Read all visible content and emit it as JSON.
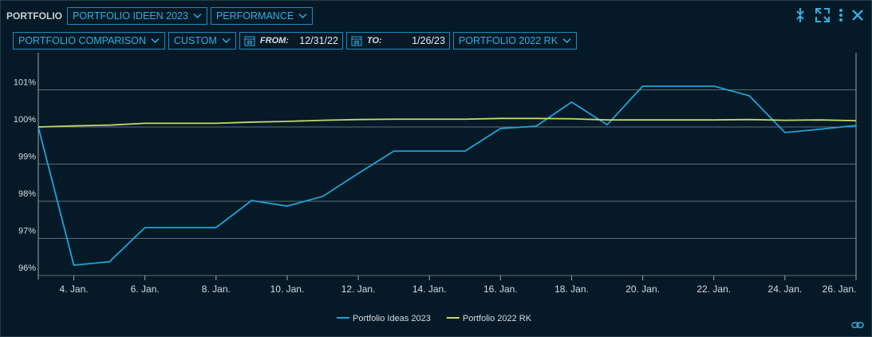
{
  "toolbar": {
    "label": "PORTFOLIO",
    "portfolio": "PORTFOLIO IDEEN 2023",
    "view": "PERFORMANCE",
    "mode": "PORTFOLIO COMPARISON",
    "range": "CUSTOM",
    "from_label": "FROM:",
    "from": "12/31/22",
    "to_label": "TO:",
    "to": "1/26/23",
    "benchmark": "PORTFOLIO 2022 RK"
  },
  "chart_data": {
    "type": "line",
    "x": [
      3,
      4,
      5,
      6,
      7,
      8,
      9,
      10,
      11,
      12,
      13,
      14,
      15,
      16,
      17,
      18,
      19,
      20,
      21,
      22,
      23,
      24,
      25,
      26
    ],
    "xlim": [
      3,
      26
    ],
    "xticks": [
      {
        "value": 4,
        "label": "4. Jan."
      },
      {
        "value": 6,
        "label": "6. Jan."
      },
      {
        "value": 8,
        "label": "8. Jan."
      },
      {
        "value": 10,
        "label": "10. Jan."
      },
      {
        "value": 12,
        "label": "12. Jan."
      },
      {
        "value": 14,
        "label": "14. Jan."
      },
      {
        "value": 16,
        "label": "16. Jan."
      },
      {
        "value": 18,
        "label": "18. Jan."
      },
      {
        "value": 20,
        "label": "20. Jan."
      },
      {
        "value": 22,
        "label": "22. Jan."
      },
      {
        "value": 24,
        "label": "24. Jan."
      },
      {
        "value": 26,
        "label": "26. Jan."
      }
    ],
    "ylim": [
      96,
      102
    ],
    "yticks": [
      {
        "value": 96,
        "label": "96%"
      },
      {
        "value": 97,
        "label": "97%"
      },
      {
        "value": 98,
        "label": "98%"
      },
      {
        "value": 99,
        "label": "99%"
      },
      {
        "value": 100,
        "label": "100%"
      },
      {
        "value": 101,
        "label": "101%"
      }
    ],
    "grid": true,
    "series": [
      {
        "name": "Portfolio Ideas 2023",
        "color": "#1fa3d8",
        "values": [
          100,
          96.28,
          96.37,
          97.29,
          97.29,
          97.29,
          98.02,
          97.87,
          98.13,
          98.75,
          99.35,
          99.35,
          99.35,
          99.96,
          100.02,
          100.67,
          100.06,
          101.1,
          101.1,
          101.1,
          100.84,
          99.85,
          99.94,
          100.04
        ]
      },
      {
        "name": "Portfolio 2022 RK",
        "color": "#c5d86d",
        "values": [
          100,
          100.03,
          100.05,
          100.1,
          100.1,
          100.1,
          100.13,
          100.15,
          100.18,
          100.2,
          100.21,
          100.21,
          100.21,
          100.23,
          100.23,
          100.22,
          100.19,
          100.19,
          100.19,
          100.19,
          100.2,
          100.18,
          100.19,
          100.17
        ]
      }
    ]
  }
}
